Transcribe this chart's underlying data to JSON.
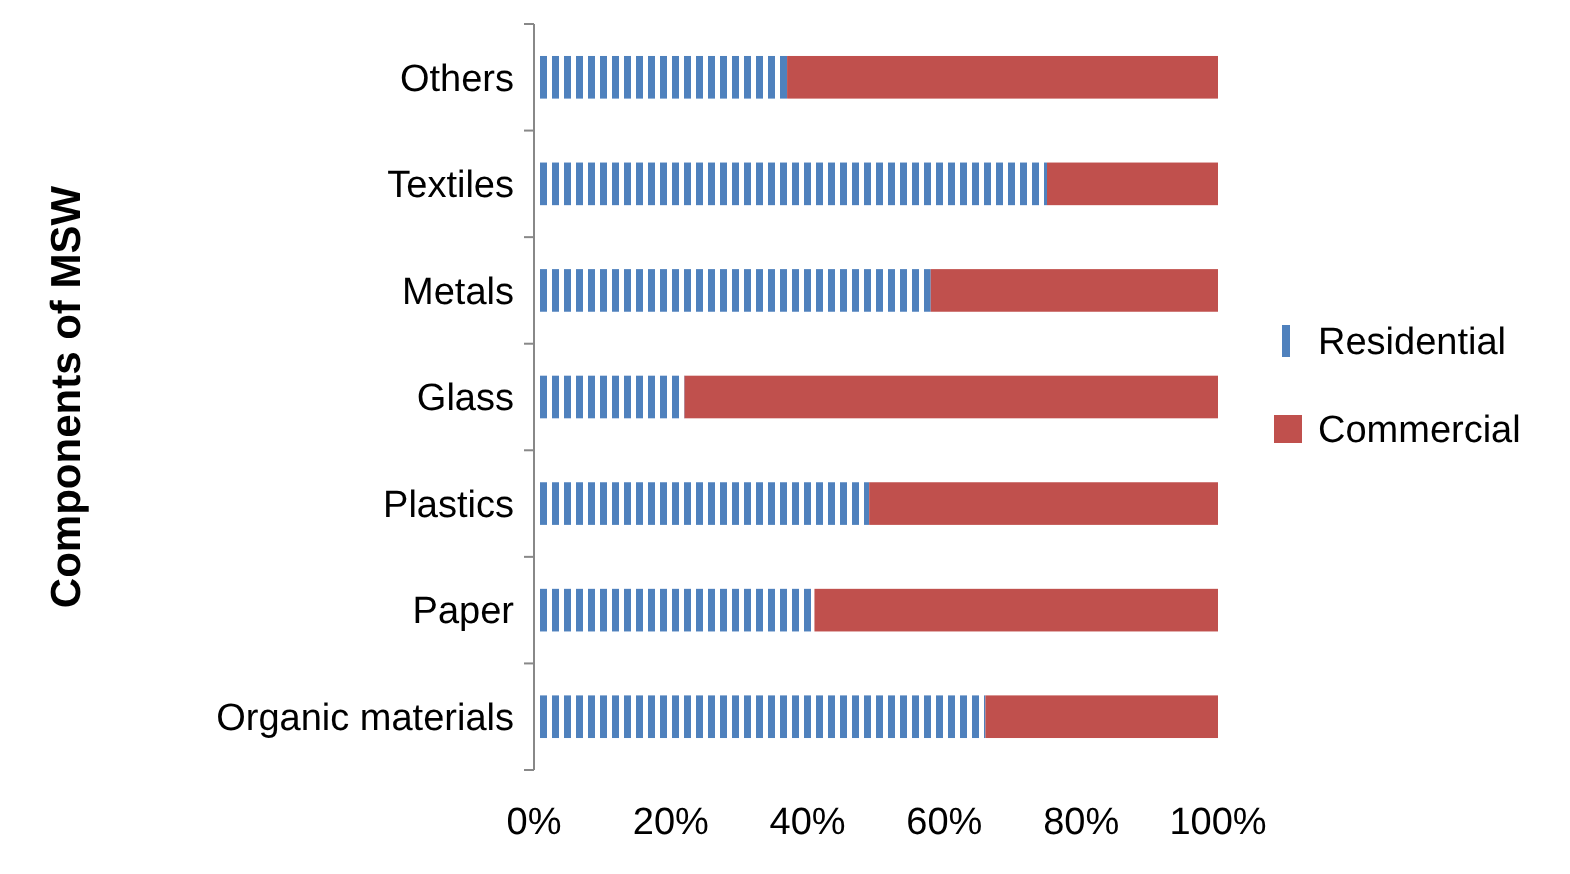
{
  "chart_data": {
    "type": "bar",
    "orientation": "horizontal",
    "stacked": true,
    "ylabel": "Components of MSW",
    "categories": [
      "Others",
      "Textiles",
      "Metals",
      "Glass",
      "Plastics",
      "Paper",
      "Organic materials"
    ],
    "series": [
      {
        "name": "Residential",
        "color": "#4f81bd",
        "values": [
          37,
          75,
          58,
          22,
          49,
          41,
          66
        ]
      },
      {
        "name": "Commercial",
        "color": "#c0504d",
        "values": [
          63,
          25,
          42,
          78,
          51,
          59,
          34
        ]
      }
    ],
    "xlim": [
      0,
      100
    ],
    "xticks": [
      {
        "value": 0,
        "label": "0%"
      },
      {
        "value": 20,
        "label": "20%"
      },
      {
        "value": 40,
        "label": "40%"
      },
      {
        "value": 60,
        "label": "60%"
      },
      {
        "value": 80,
        "label": "80%"
      },
      {
        "value": 100,
        "label": "100%"
      }
    ],
    "legend": "right",
    "grid": false
  }
}
